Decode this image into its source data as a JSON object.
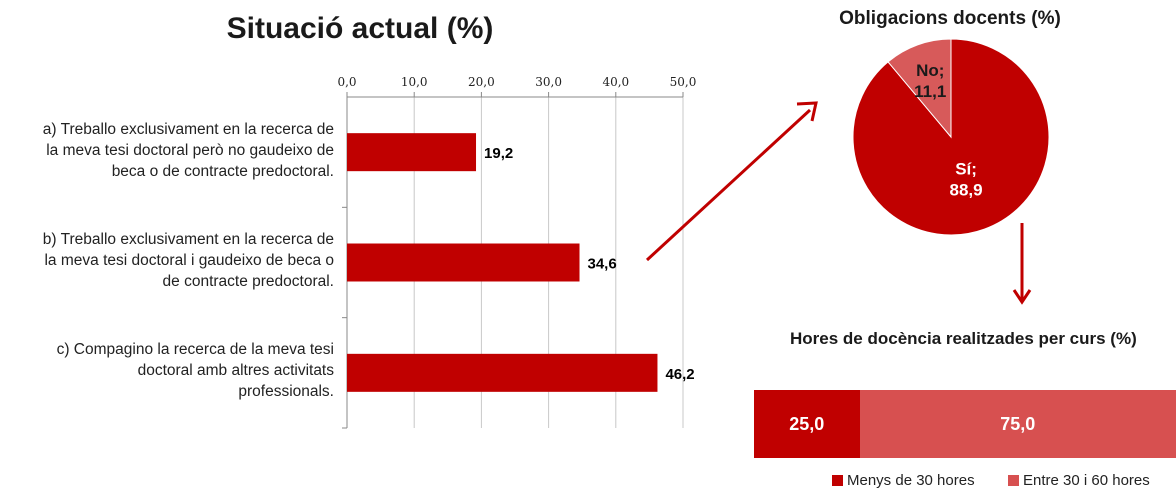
{
  "chart_data": [
    {
      "type": "bar",
      "orientation": "horizontal",
      "title": "Situació actual (%)",
      "categories": [
        "a) Treballo exclusivament en la recerca de la meva tesi doctoral però no gaudeixo de beca o de contracte predoctoral.",
        "b) Treballo exclusivament en la recerca de la meva tesi doctoral i gaudeixo de beca o de contracte predoctoral.",
        "c) Compagino la recerca de la meva tesi doctoral amb altres activitats professionals."
      ],
      "category_lines": [
        [
          "a) Treballo exclusivament en la recerca de",
          "la meva tesi doctoral però no gaudeixo de",
          "beca o de contracte predoctoral."
        ],
        [
          "b) Treballo exclusivament en la recerca de",
          "la meva tesi doctoral i gaudeixo de beca o",
          "de contracte predoctoral."
        ],
        [
          "c) Compagino la recerca de la meva tesi",
          "doctoral amb altres activitats",
          "professionals."
        ]
      ],
      "values": [
        19.2,
        34.6,
        46.2
      ],
      "value_labels": [
        "19,2",
        "34,6",
        "46,2"
      ],
      "xlim": [
        0,
        50
      ],
      "ticks": [
        "0,0",
        "10,0",
        "20,0",
        "30,0",
        "40,0",
        "50,0"
      ],
      "axis_position": "top",
      "grid": true,
      "color": "#c00000"
    },
    {
      "type": "pie",
      "title": "Obligacions docents (%)",
      "slices": [
        {
          "name": "Sí",
          "value": 88.9,
          "label": "Sí;",
          "value_label": "88,9",
          "color": "#c00000"
        },
        {
          "name": "No",
          "value": 11.1,
          "label": "No;",
          "value_label": "11,1",
          "color": "#d75a5a"
        }
      ]
    },
    {
      "type": "bar",
      "stacked": true,
      "orientation": "horizontal",
      "title": "Hores de docència realitzades per curs (%)",
      "series": [
        {
          "name": "Menys de 30 hores",
          "values": [
            25.0
          ],
          "value_label": "25,0",
          "color": "#c00000"
        },
        {
          "name": "Entre 30 i 60 hores",
          "values": [
            75.0
          ],
          "value_label": "75,0",
          "color": "#d75050"
        }
      ],
      "legend_position": "bottom"
    }
  ],
  "arrow_color": "#c00000"
}
